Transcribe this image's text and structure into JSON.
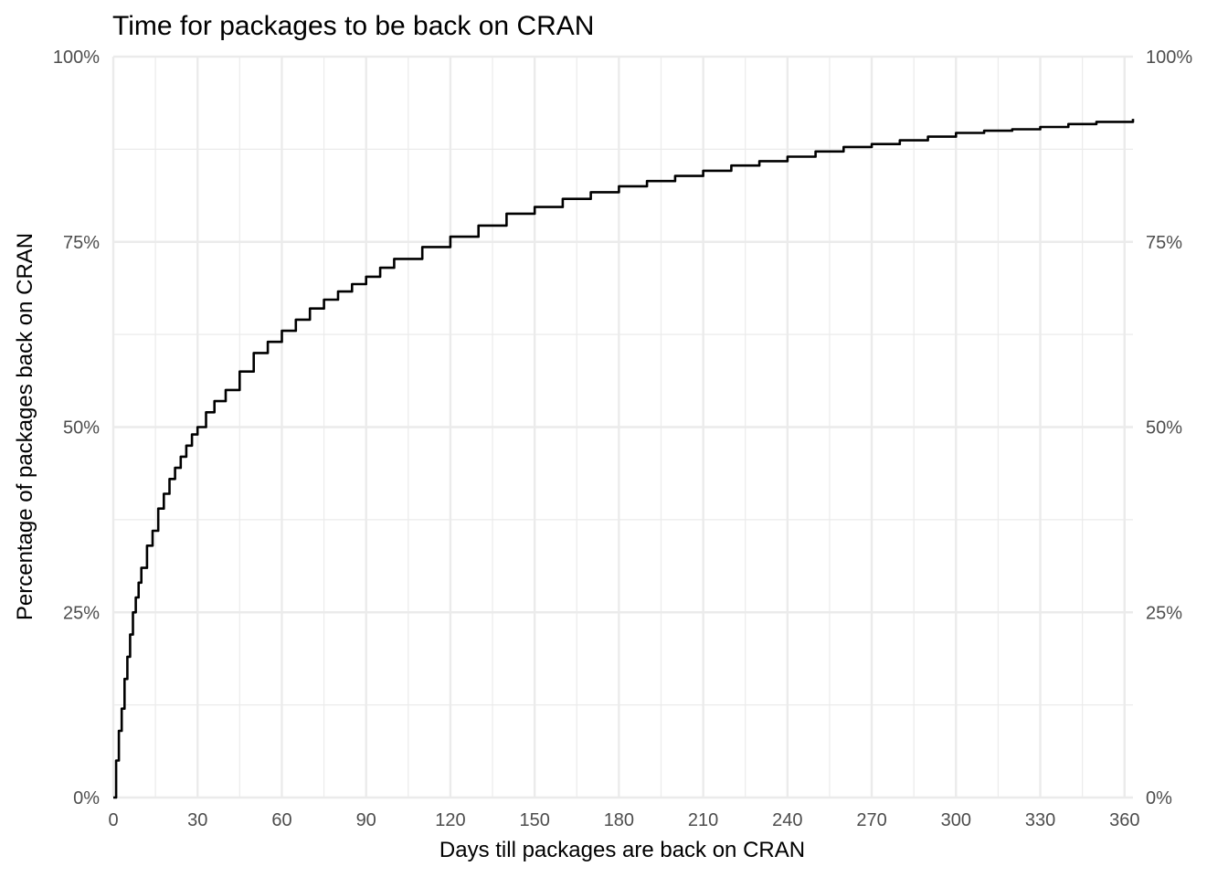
{
  "chart_data": {
    "type": "line",
    "title": "Time for packages to be back on CRAN",
    "xlabel": "Days till packages are back on CRAN",
    "ylabel": "Percentage of packages back on CRAN",
    "xlim": [
      0,
      363
    ],
    "ylim": [
      0,
      1
    ],
    "x_ticks": [
      0,
      30,
      60,
      90,
      120,
      150,
      180,
      210,
      240,
      270,
      300,
      330,
      360
    ],
    "x_tick_labels": [
      "0",
      "30",
      "60",
      "90",
      "120",
      "150",
      "180",
      "210",
      "240",
      "270",
      "300",
      "330",
      "360"
    ],
    "y_ticks": [
      0,
      0.25,
      0.5,
      0.75,
      1
    ],
    "y_tick_labels": [
      "0%",
      "25%",
      "50%",
      "75%",
      "100%"
    ],
    "secondary_y_axis": true,
    "grid": true,
    "legend": "none",
    "colors": {
      "line": "#000000",
      "grid": "#ebebeb",
      "tick_text": "#4d4d4d"
    },
    "series": [
      {
        "x": [
          0,
          1,
          2,
          3,
          4,
          5,
          6,
          7,
          8,
          9,
          10,
          12,
          14,
          16,
          18,
          20,
          22,
          24,
          26,
          28,
          30,
          33,
          36,
          40,
          45,
          50,
          55,
          60,
          65,
          70,
          75,
          80,
          85,
          90,
          95,
          100,
          110,
          120,
          130,
          140,
          150,
          160,
          170,
          180,
          190,
          200,
          210,
          220,
          230,
          240,
          250,
          260,
          270,
          280,
          290,
          300,
          310,
          320,
          330,
          340,
          350,
          363
        ],
        "y": [
          0,
          0.05,
          0.09,
          0.12,
          0.16,
          0.19,
          0.22,
          0.25,
          0.27,
          0.29,
          0.31,
          0.34,
          0.36,
          0.39,
          0.41,
          0.43,
          0.445,
          0.46,
          0.475,
          0.49,
          0.5,
          0.52,
          0.535,
          0.55,
          0.575,
          0.6,
          0.615,
          0.63,
          0.645,
          0.66,
          0.672,
          0.683,
          0.693,
          0.703,
          0.715,
          0.727,
          0.743,
          0.757,
          0.772,
          0.788,
          0.797,
          0.808,
          0.817,
          0.825,
          0.832,
          0.839,
          0.846,
          0.853,
          0.859,
          0.865,
          0.872,
          0.878,
          0.882,
          0.887,
          0.892,
          0.897,
          0.9,
          0.902,
          0.905,
          0.909,
          0.912,
          0.916
        ]
      }
    ]
  }
}
